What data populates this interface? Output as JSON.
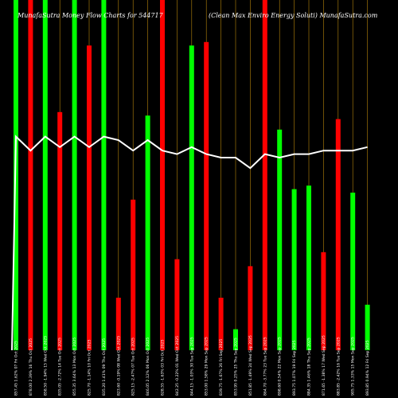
{
  "title_left": "MunafaSutra  Money Flow  Charts for 544717",
  "title_right": "(Clean  Max Enviro  Energy Soluti) MunafaSutra.com",
  "colors": {
    "background": "#000000",
    "up": "#00ff00",
    "down": "#ff0000",
    "line": "#ffffff",
    "grid": "#b8860b"
  },
  "chart_data": {
    "type": "bar",
    "grid": "vertical orange lines at each bar",
    "categories": [
      "857.45 1.62% 07 Fri Oct 2025",
      "878.00 2.39% 16 Thu Oct 2025",
      "858.50 -1.94% 15 Wed Oct 2025",
      "835.05 -2.72% 14 Tue Oct 2025",
      "855.35 3.64% 13 Mon Oct 2025",
      "825.70 -1.14% 10 Fri Oct 2025",
      "835.20 1.41% 09 Thu Oct 2025",
      "823.60 -0.19% 08 Wed Oct 2025",
      "825.15 -2.47% 07 Tue Oct 2025",
      "846.05 2.12% 06 Mon Oct 2025",
      "828.55 -1.63% 03 Fri Oct 2025",
      "842.25 -0.22% 01 Wed Oct 2025",
      "844.15 -1.03% 30 Tue Sep 2025",
      "853.00 1.58% 29 Mon Sep 2025",
      "839.75 -1.67% 26 Fri Sep 2025",
      "853.95 0.25% 25 Thu Sep 2025",
      "851.85 -1.49% 24 Wed Sep 2025",
      "864.70 -3.77% 23 Tue Sep 2025",
      "898.60 0.54% 22 Mon Sep 2025",
      "893.75 1.07% 19 Fri Sep 2025",
      "884.35 1.46% 18 Thu Sep 2025",
      "871.65 -1.38% 17 Wed Sep 2025",
      "883.85 -2.42% 16 Tue Sep 2025",
      "905.75 1.33% 15 Mon Sep 2025",
      "893.85 0.94% 12 Fri Sep 2025"
    ],
    "bars": [
      {
        "dir": "up",
        "value": 100
      },
      {
        "dir": "down",
        "value": 100
      },
      {
        "dir": "up",
        "value": 100
      },
      {
        "dir": "down",
        "value": 68
      },
      {
        "dir": "up",
        "value": 100
      },
      {
        "dir": "down",
        "value": 87
      },
      {
        "dir": "up",
        "value": 100
      },
      {
        "dir": "down",
        "value": 15
      },
      {
        "dir": "down",
        "value": 43
      },
      {
        "dir": "up",
        "value": 67
      },
      {
        "dir": "down",
        "value": 100
      },
      {
        "dir": "down",
        "value": 26
      },
      {
        "dir": "up",
        "value": 87
      },
      {
        "dir": "down",
        "value": 88
      },
      {
        "dir": "down",
        "value": 15
      },
      {
        "dir": "up",
        "value": 6
      },
      {
        "dir": "down",
        "value": 24
      },
      {
        "dir": "down",
        "value": 100
      },
      {
        "dir": "up",
        "value": 63
      },
      {
        "dir": "up",
        "value": 46
      },
      {
        "dir": "up",
        "value": 47
      },
      {
        "dir": "down",
        "value": 28
      },
      {
        "dir": "down",
        "value": 66
      },
      {
        "dir": "up",
        "value": 45
      },
      {
        "dir": "up",
        "value": 13
      }
    ],
    "line": [
      61,
      57,
      61,
      58,
      61,
      58,
      61,
      60,
      57,
      60,
      57,
      56,
      58,
      56,
      55,
      55,
      52,
      56,
      55,
      56,
      56,
      57,
      57,
      57,
      58
    ]
  }
}
